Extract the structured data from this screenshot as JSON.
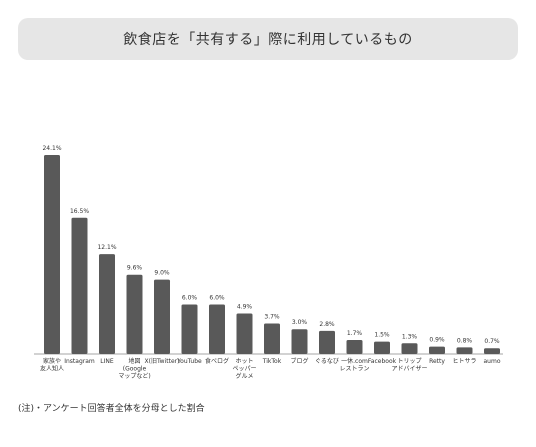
{
  "chart_data": {
    "type": "bar",
    "title": "飲食店を「共有する」際に利用しているもの",
    "categories": [
      [
        "家族や",
        "友人知人"
      ],
      [
        "Instagram"
      ],
      [
        "LINE"
      ],
      [
        "地図",
        "(Google",
        "マップなど)"
      ],
      [
        "X(旧Twitter)"
      ],
      [
        "YouTube"
      ],
      [
        "食べログ"
      ],
      [
        "ホット",
        "ペッパー",
        "グルメ"
      ],
      [
        "TikTok"
      ],
      [
        "ブログ"
      ],
      [
        "ぐるなび"
      ],
      [
        "一休.com",
        "レストラン"
      ],
      [
        "Facebook"
      ],
      [
        "トリップ",
        "アドバイザー"
      ],
      [
        "Retty"
      ],
      [
        "ヒトサラ"
      ],
      [
        "aumo"
      ]
    ],
    "values": [
      24.1,
      16.5,
      12.1,
      9.6,
      9.0,
      6.0,
      6.0,
      4.9,
      3.7,
      3.0,
      2.8,
      1.7,
      1.5,
      1.3,
      0.9,
      0.8,
      0.7
    ],
    "value_labels": [
      "24.1%",
      "16.5%",
      "12.1%",
      "9.6%",
      "9.0%",
      "6.0%",
      "6.0%",
      "4.9%",
      "3.7%",
      "3.0%",
      "2.8%",
      "1.7%",
      "1.5%",
      "1.3%",
      "0.9%",
      "0.8%",
      "0.7%"
    ],
    "ylim": [
      0,
      24.1
    ],
    "bar_color": "#595959",
    "grid": false,
    "legend": "none"
  },
  "note": "(注)・アンケート回答者全体を分母とした割合"
}
